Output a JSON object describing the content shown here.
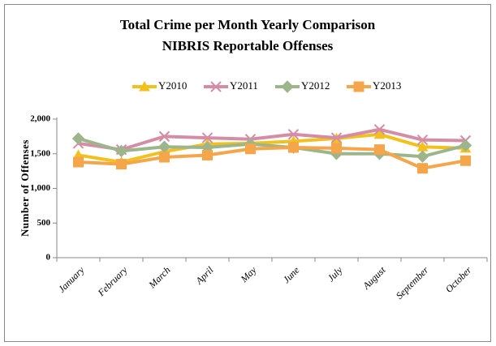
{
  "chart_data": {
    "type": "line",
    "title": "Total Crime per Month Yearly Comparison",
    "subtitle": "NIBRIS Reportable Offenses",
    "y_label": "Number of Offenses",
    "categories": [
      "January",
      "February",
      "March",
      "April",
      "May",
      "June",
      "July",
      "August",
      "September",
      "October"
    ],
    "series": [
      {
        "name": "Y2010",
        "color": "#f2c11d",
        "marker": "triangle",
        "values": [
          1480,
          1380,
          1530,
          1640,
          1650,
          1680,
          1720,
          1780,
          1600,
          1580
        ]
      },
      {
        "name": "Y2011",
        "color": "#d58ca5",
        "marker": "x",
        "values": [
          1650,
          1560,
          1750,
          1730,
          1710,
          1780,
          1730,
          1850,
          1700,
          1690
        ]
      },
      {
        "name": "Y2012",
        "color": "#9db58c",
        "marker": "diamond",
        "values": [
          1720,
          1540,
          1600,
          1590,
          1640,
          1590,
          1500,
          1500,
          1460,
          1620
        ]
      },
      {
        "name": "Y2013",
        "color": "#f5a54a",
        "marker": "square",
        "values": [
          1380,
          1350,
          1450,
          1480,
          1570,
          1590,
          1580,
          1560,
          1290,
          1400
        ]
      }
    ],
    "ylim": [
      0,
      2000
    ],
    "yticks": [
      0,
      500,
      {
        "value": 1000,
        "label": "1,000"
      },
      {
        "value": 1500,
        "label": "1,500"
      },
      {
        "value": 2000,
        "label": "2,000"
      }
    ],
    "legend": "top",
    "grid": false
  }
}
